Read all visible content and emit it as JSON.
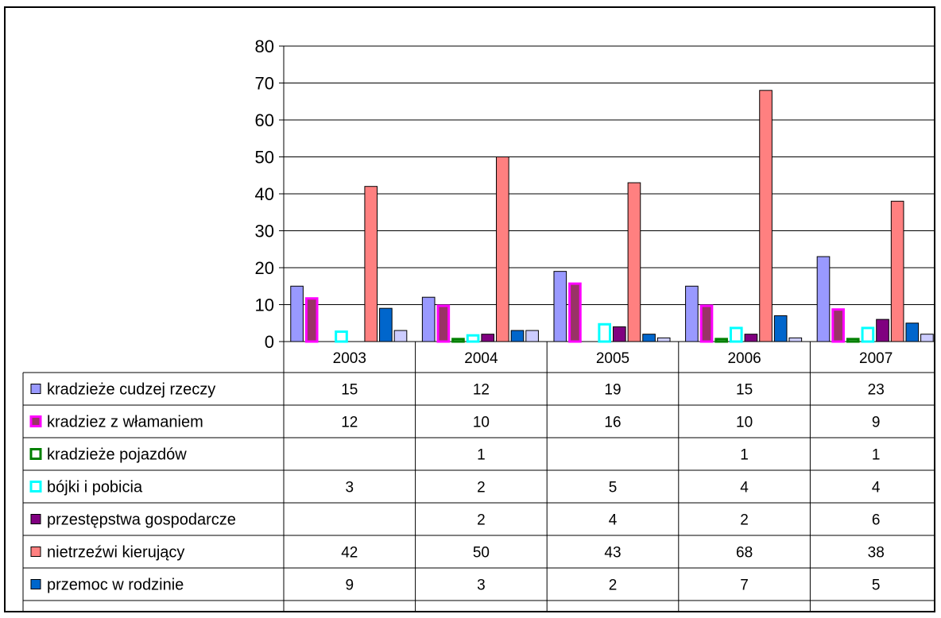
{
  "chart_data": {
    "type": "bar",
    "categories": [
      "2003",
      "2004",
      "2005",
      "2006",
      "2007"
    ],
    "ylim": [
      0,
      80
    ],
    "yticks": [
      0,
      10,
      20,
      30,
      40,
      50,
      60,
      70,
      80
    ],
    "grid": true,
    "legend": "data-table",
    "series": [
      {
        "name": "kradzieże cudzej rzeczy",
        "values": [
          15,
          12,
          19,
          15,
          23
        ],
        "color": "#9999FF",
        "border": "#000000"
      },
      {
        "name": "kradziez z włamaniem",
        "values": [
          12,
          10,
          16,
          10,
          9
        ],
        "color": "#993366",
        "border": "#FF00FF"
      },
      {
        "name": "kradzieże pojazdów",
        "values": [
          null,
          1,
          null,
          1,
          1
        ],
        "color": "#FFFFFF",
        "border": "#008000"
      },
      {
        "name": "bójki i pobicia",
        "values": [
          3,
          2,
          5,
          4,
          4
        ],
        "color": "#FFFFFF",
        "border": "#00FFFF"
      },
      {
        "name": "przestępstwa gospodarcze",
        "values": [
          null,
          2,
          4,
          2,
          6
        ],
        "color": "#800080",
        "border": "#000000"
      },
      {
        "name": "nietrzeźwi kierujący",
        "values": [
          42,
          50,
          43,
          68,
          38
        ],
        "color": "#FF8080",
        "border": "#000000"
      },
      {
        "name": "przemoc w rodzinie",
        "values": [
          9,
          3,
          2,
          7,
          5
        ],
        "color": "#0066CC",
        "border": "#000000"
      },
      {
        "name": "",
        "values": [
          3,
          3,
          1,
          1,
          2
        ],
        "color": "#CCCCFF",
        "border": "#000000"
      }
    ]
  }
}
